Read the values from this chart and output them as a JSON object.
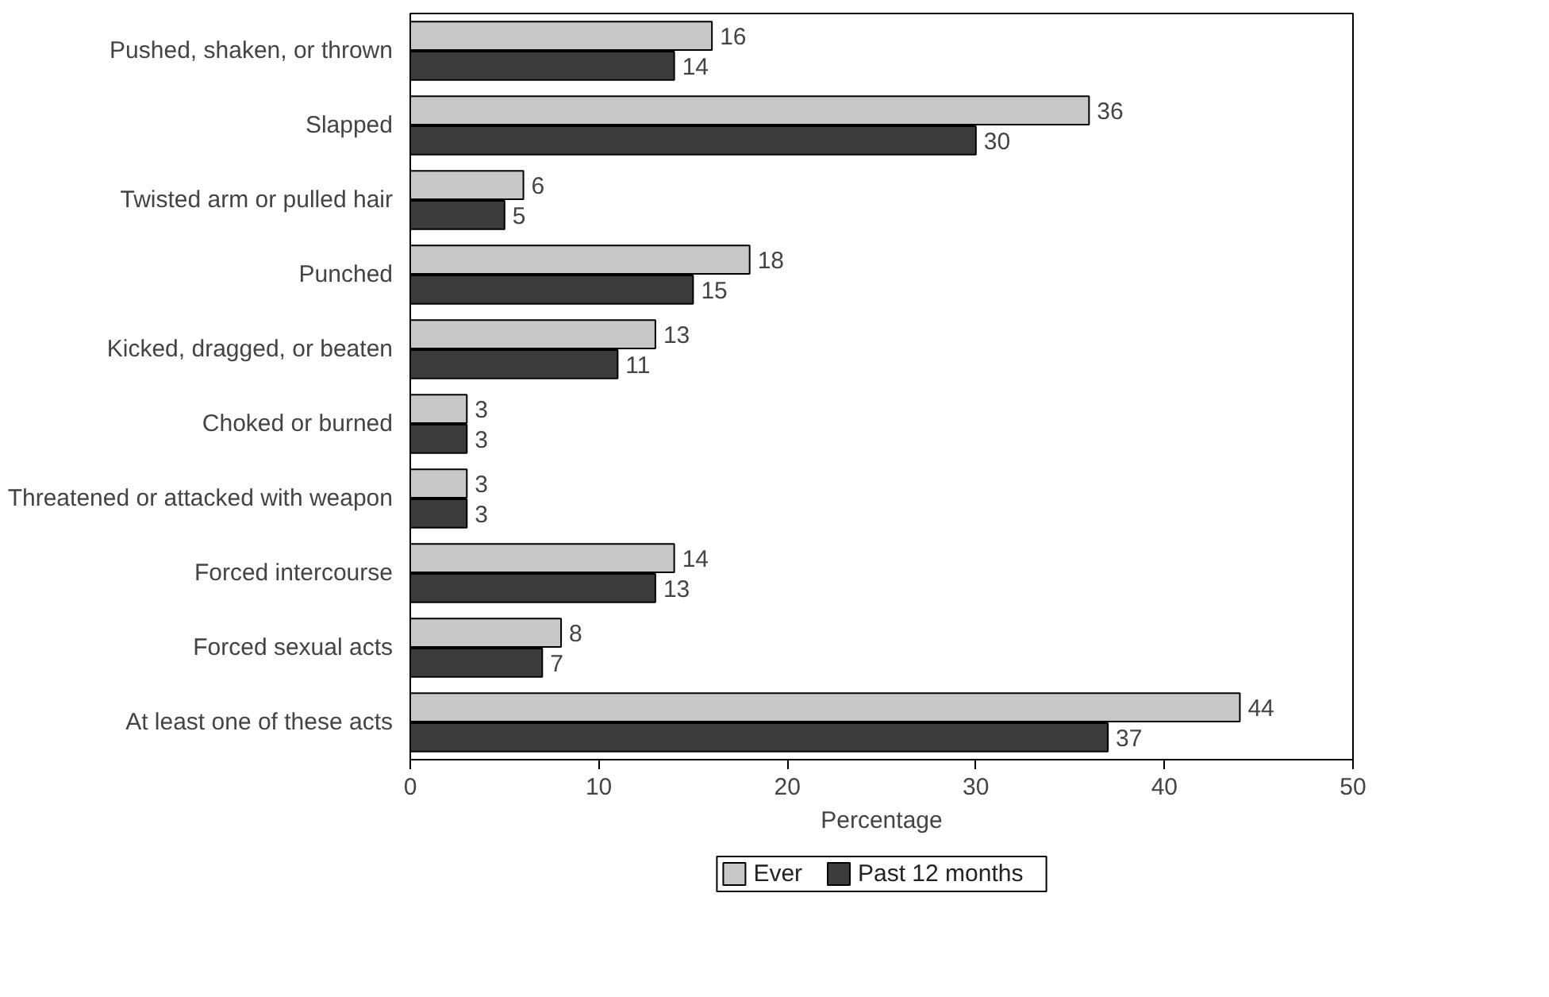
{
  "chart_data": {
    "type": "bar",
    "orientation": "horizontal",
    "xlabel": "Percentage",
    "categories": [
      "Pushed, shaken, or thrown",
      "Slapped",
      "Twisted arm or pulled hair",
      "Punched",
      "Kicked, dragged, or beaten",
      "Choked or burned",
      "Threatened or attacked with weapon",
      "Forced intercourse",
      "Forced sexual acts",
      "At least one of these acts"
    ],
    "series": [
      {
        "name": "Ever",
        "color": "#c8c8c8",
        "values": [
          16,
          36,
          6,
          18,
          13,
          3,
          3,
          14,
          8,
          44
        ]
      },
      {
        "name": "Past 12 months",
        "color": "#3c3c3c",
        "values": [
          14,
          30,
          5,
          15,
          11,
          3,
          3,
          13,
          7,
          37
        ]
      }
    ],
    "xlim": [
      0,
      50
    ],
    "xticks": [
      0,
      10,
      20,
      30,
      40,
      50
    ],
    "data_labels": true,
    "grid": false,
    "legend": "bottom"
  }
}
